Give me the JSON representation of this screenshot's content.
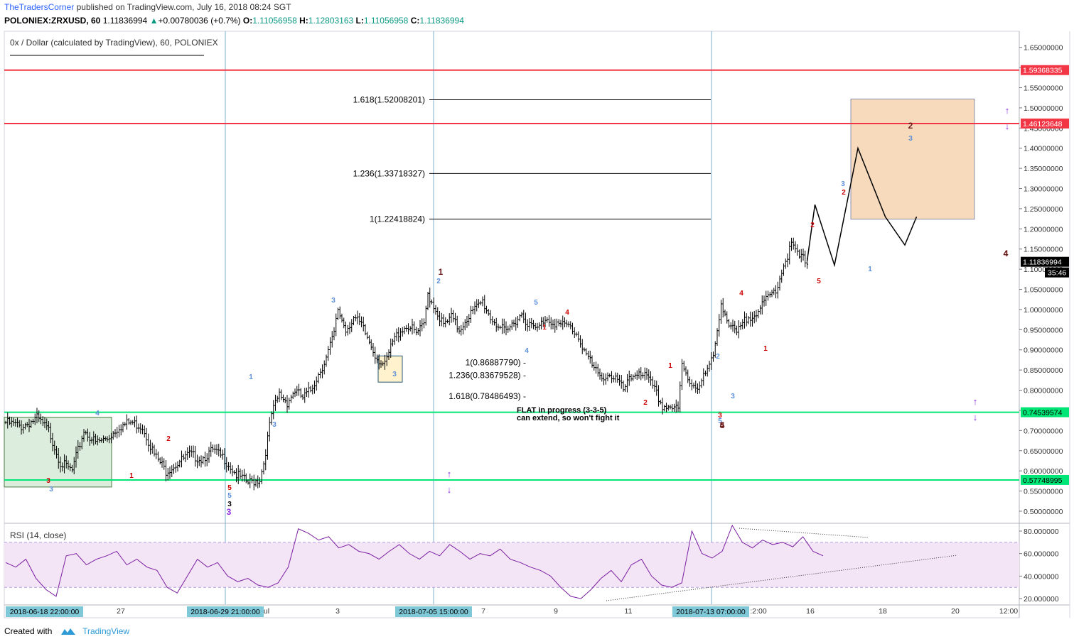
{
  "header": {
    "brand": "TheTradersCorner",
    "published": "published on TradingView.com, July 16, 2018 08:24 SGT",
    "symbol_line": "POLONIEX:ZRXUSD, 60",
    "last": "1.11836994",
    "change_arrow": "▲",
    "change": "+0.00780036 (+0.7%)",
    "o_label": "O:",
    "o": "1.11056958",
    "h_label": "H:",
    "h": "1.12803163",
    "l_label": "L:",
    "l": "1.11056958",
    "c_label": "C:",
    "c": "1.11836994"
  },
  "footer": {
    "created": "Created with",
    "tv": "TradingView"
  },
  "chart_data": [
    {
      "type": "candlestick",
      "title": "0x / Dollar (calculated by TradingView), 60, POLONIEX",
      "ylim": [
        0.47,
        1.69
      ],
      "ytick_labels": [
        "1.65000000",
        "1.60000000",
        "1.55000000",
        "1.50000000",
        "1.45000000",
        "1.40000000",
        "1.35000000",
        "1.30000000",
        "1.25000000",
        "1.20000000",
        "1.15000000",
        "1.10000000",
        "1.05000000",
        "1.00000000",
        "0.95000000",
        "0.90000000",
        "0.85000000",
        "0.80000000",
        "0.75000000",
        "0.70000000",
        "0.65000000",
        "0.60000000",
        "0.55000000",
        "0.50000000"
      ],
      "yticks": [
        1.65,
        1.6,
        1.55,
        1.5,
        1.45,
        1.4,
        1.35,
        1.3,
        1.25,
        1.2,
        1.15,
        1.1,
        1.05,
        1.0,
        0.95,
        0.9,
        0.85,
        0.8,
        0.75,
        0.7,
        0.65,
        0.6,
        0.55,
        0.5
      ],
      "price_path": [
        [
          0,
          0.72
        ],
        [
          4,
          0.71
        ],
        [
          8,
          0.73
        ],
        [
          11,
          0.7
        ],
        [
          14,
          0.62
        ],
        [
          17,
          0.6
        ],
        [
          20,
          0.7
        ],
        [
          23,
          0.67
        ],
        [
          26,
          0.68
        ],
        [
          29,
          0.71
        ],
        [
          32,
          0.72
        ],
        [
          35,
          0.71
        ],
        [
          38,
          0.64
        ],
        [
          41,
          0.6
        ],
        [
          44,
          0.62
        ],
        [
          47,
          0.64
        ],
        [
          50,
          0.63
        ],
        [
          53,
          0.65
        ],
        [
          56,
          0.63
        ],
        [
          59,
          0.59
        ],
        [
          62,
          0.57
        ],
        [
          65,
          0.58
        ],
        [
          66,
          0.62
        ],
        [
          68,
          0.74
        ],
        [
          70,
          0.79
        ],
        [
          72,
          0.77
        ],
        [
          74,
          0.8
        ],
        [
          76,
          0.78
        ],
        [
          78,
          0.8
        ],
        [
          80,
          0.84
        ],
        [
          82,
          0.88
        ],
        [
          84,
          0.94
        ],
        [
          85,
          1.0
        ],
        [
          87,
          0.95
        ],
        [
          89,
          0.98
        ],
        [
          91,
          0.96
        ],
        [
          93,
          0.92
        ],
        [
          95,
          0.88
        ],
        [
          97,
          0.86
        ],
        [
          99,
          0.92
        ],
        [
          101,
          0.95
        ],
        [
          103,
          0.96
        ],
        [
          105,
          0.94
        ],
        [
          107,
          0.96
        ],
        [
          108,
          1.04
        ],
        [
          110,
          1.0
        ],
        [
          112,
          0.96
        ],
        [
          114,
          0.98
        ],
        [
          116,
          0.95
        ],
        [
          118,
          0.98
        ],
        [
          120,
          1.0
        ],
        [
          122,
          1.02
        ],
        [
          124,
          0.98
        ],
        [
          126,
          0.96
        ],
        [
          128,
          0.94
        ],
        [
          130,
          0.97
        ],
        [
          132,
          0.99
        ],
        [
          134,
          0.96
        ],
        [
          136,
          0.95
        ],
        [
          138,
          0.98
        ],
        [
          140,
          0.97
        ],
        [
          142,
          0.96
        ],
        [
          144,
          0.96
        ],
        [
          146,
          0.94
        ],
        [
          148,
          0.9
        ],
        [
          150,
          0.86
        ],
        [
          152,
          0.83
        ],
        [
          154,
          0.84
        ],
        [
          156,
          0.83
        ],
        [
          158,
          0.8
        ],
        [
          160,
          0.83
        ],
        [
          162,
          0.85
        ],
        [
          164,
          0.83
        ],
        [
          166,
          0.8
        ],
        [
          168,
          0.76
        ],
        [
          170,
          0.76
        ],
        [
          172,
          0.75
        ],
        [
          173,
          0.86
        ],
        [
          175,
          0.82
        ],
        [
          177,
          0.81
        ],
        [
          179,
          0.84
        ],
        [
          181,
          0.88
        ],
        [
          183,
          1.02
        ],
        [
          185,
          0.96
        ],
        [
          187,
          0.94
        ],
        [
          189,
          0.97
        ],
        [
          191,
          0.99
        ],
        [
          193,
          1.0
        ],
        [
          195,
          1.03
        ],
        [
          197,
          1.05
        ],
        [
          199,
          1.11
        ],
        [
          201,
          1.16
        ],
        [
          203,
          1.13
        ],
        [
          205,
          1.12
        ]
      ],
      "x_tick_labels": [
        "27",
        "ul",
        "3",
        "7",
        "9",
        "11",
        ":2:00",
        "16",
        "18",
        "20",
        "12:00"
      ],
      "x_highlight_labels": [
        "2018-06-18 22:00:00",
        "2018-06-29 21:00:00",
        "2018-07-05 15:00:00",
        "2018-07-13 07:00:00"
      ],
      "horizontal_levels": [
        {
          "value": 1.59368335,
          "label": "1.59368335",
          "color": "#f23645"
        },
        {
          "value": 1.46123648,
          "label": "1.46123648",
          "color": "#f23645"
        },
        {
          "value": 0.74539574,
          "label": "0.74539574",
          "color": "#00e676"
        },
        {
          "value": 0.57748995,
          "label": "0.57748995",
          "color": "#00e676"
        }
      ],
      "last_price_label": "1.11836994",
      "countdown": "35:46",
      "fib_upper": [
        {
          "label": "1.618(1.52008201)",
          "value": 1.52008201
        },
        {
          "label": "1.236(1.33718327)",
          "value": 1.33718327
        },
        {
          "label": "1(1.22418824)",
          "value": 1.22418824
        }
      ],
      "fib_lower": [
        {
          "label": "1(0.86887790)",
          "value": 0.8688779
        },
        {
          "label": "1.236(0.83679528)",
          "value": 0.83679528
        },
        {
          "label": "1.618(0.78486493)",
          "value": 0.78486493
        }
      ],
      "note_lines": [
        "FLAT in progress (3-3-5)",
        "can extend, so won't fight it"
      ],
      "wave_labels": [
        "3",
        "3",
        "4",
        "1",
        "2",
        "1",
        "3",
        "3",
        "5",
        "3",
        "5",
        "1",
        "2",
        "3",
        "4",
        "5",
        "1",
        "4",
        "2",
        "1",
        "2",
        "3",
        "4",
        "1",
        "2",
        "5",
        "3",
        "2",
        "1",
        "2",
        "3",
        "4",
        "3",
        "5",
        "4",
        "3",
        "5",
        "4"
      ],
      "projection_path": [
        [
          205,
          1.12
        ],
        [
          207,
          1.26
        ],
        [
          212,
          1.11
        ],
        [
          218,
          1.4
        ],
        [
          225,
          1.23
        ],
        [
          230,
          1.16
        ],
        [
          233,
          1.23
        ]
      ],
      "target_box": {
        "y_low": 1.224,
        "y_high": 1.522
      },
      "ellipsis_arrows": [
        "↑",
        "↓"
      ]
    },
    {
      "type": "line",
      "title": "RSI (14, close)",
      "ylim": [
        15,
        85
      ],
      "ytick_labels": [
        "80.000000",
        "60.000000",
        "40.000000",
        "20.000000"
      ],
      "yticks": [
        80,
        60,
        40,
        20
      ],
      "band": [
        30,
        70
      ],
      "series": [
        {
          "name": "RSI",
          "values": [
            52,
            48,
            55,
            38,
            28,
            22,
            58,
            60,
            50,
            55,
            58,
            62,
            50,
            55,
            48,
            45,
            30,
            25,
            40,
            55,
            48,
            52,
            40,
            35,
            38,
            32,
            30,
            34,
            48,
            82,
            78,
            72,
            75,
            65,
            68,
            62,
            60,
            55,
            62,
            68,
            60,
            55,
            62,
            58,
            68,
            62,
            55,
            60,
            58,
            64,
            55,
            52,
            48,
            45,
            40,
            30,
            22,
            20,
            28,
            38,
            45,
            35,
            50,
            55,
            40,
            32,
            30,
            34,
            80,
            60,
            56,
            62,
            85,
            70,
            65,
            72,
            68,
            70,
            66,
            75,
            62,
            58
          ]
        }
      ]
    }
  ]
}
